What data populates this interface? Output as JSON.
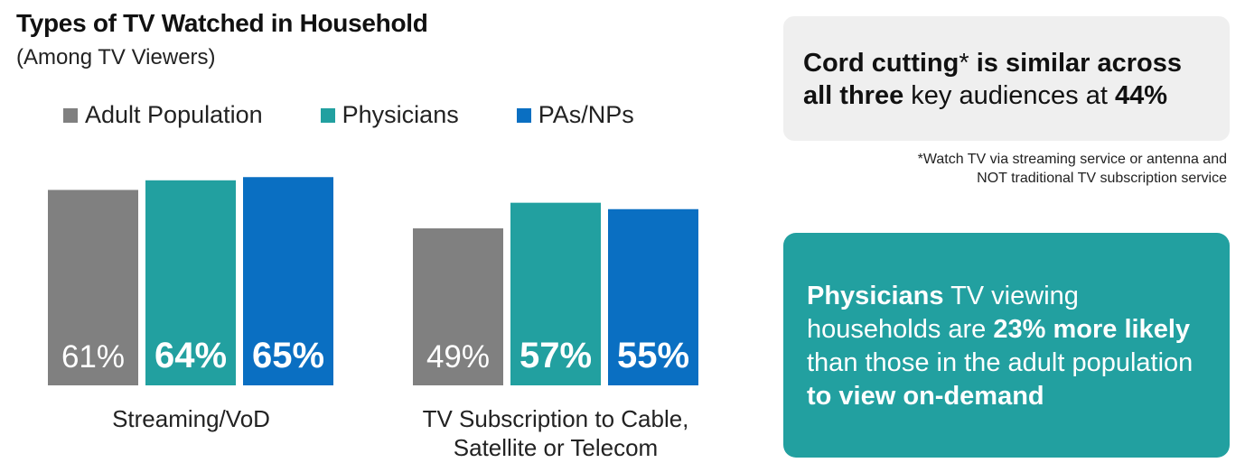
{
  "chart_data": {
    "type": "bar",
    "title": "Types of TV Watched in Household",
    "subtitle": "(Among TV Viewers)",
    "legend_position": "top-left",
    "grid": false,
    "categories": [
      "Streaming/VoD",
      "TV Subscription to Cable, Satellite or Telecom"
    ],
    "category_lines": [
      [
        "Streaming/VoD"
      ],
      [
        "TV Subscription to Cable,",
        "Satellite or Telecom"
      ]
    ],
    "ylim": [
      0,
      70
    ],
    "series": [
      {
        "name": "Adult Population",
        "color": "#808080",
        "values": [
          61,
          49
        ],
        "labels": [
          "61%",
          "49%"
        ],
        "bold": false
      },
      {
        "name": "Physicians",
        "color": "#22a0a0",
        "values": [
          64,
          57
        ],
        "labels": [
          "64%",
          "57%"
        ],
        "bold": true
      },
      {
        "name": "PAs/NPs",
        "color": "#0a6fc2",
        "values": [
          65,
          55
        ],
        "labels": [
          "65%",
          "55%"
        ],
        "bold": true
      }
    ]
  },
  "callout_gray": {
    "part1": "Cord cutting",
    "asterisk": "*",
    "part2": " is similar across all three",
    "part3": " key audiences at ",
    "part4": "44%"
  },
  "footnote": {
    "line1": "*Watch TV via streaming service or antenna and",
    "line2": "NOT traditional TV subscription service"
  },
  "callout_teal": {
    "part1": "Physicians",
    "part2": " TV viewing households are ",
    "part3": "23% more likely",
    "part4": " than those in the adult population ",
    "part5": "to view on-demand"
  },
  "colors": {
    "adult": "#808080",
    "physicians": "#22a0a0",
    "pas_nps": "#0a6fc2",
    "callout_gray_bg": "#efefef",
    "callout_teal_bg": "#22a0a0"
  }
}
